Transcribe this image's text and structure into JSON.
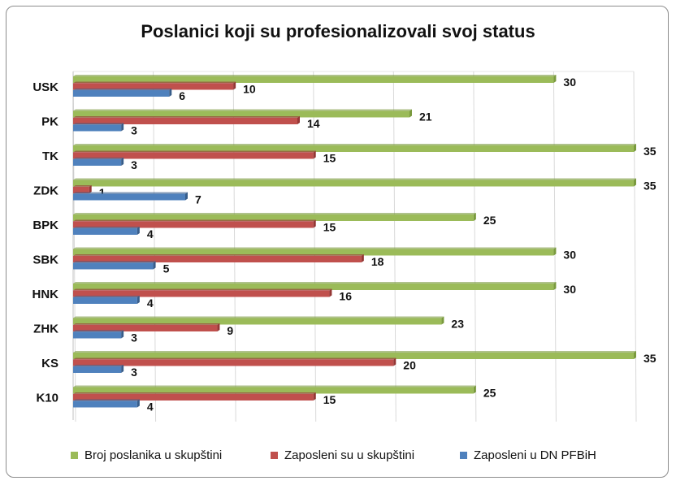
{
  "chart_data": {
    "type": "bar",
    "orientation": "horizontal",
    "title": "Poslanici koji su profesionalizovali svoj status",
    "categories": [
      "USK",
      "PK",
      "TK",
      "ZDK",
      "BPK",
      "SBK",
      "HNK",
      "ZHK",
      "KS",
      "K10"
    ],
    "series": [
      {
        "name": "Broj poslanika u skupštini",
        "color": "#9bbb59",
        "values": [
          30,
          21,
          35,
          35,
          25,
          30,
          30,
          23,
          35,
          25
        ]
      },
      {
        "name": "Zaposleni su u skupštini",
        "color": "#c0504d",
        "values": [
          10,
          14,
          15,
          1,
          15,
          18,
          16,
          9,
          20,
          15
        ]
      },
      {
        "name": "Zaposleni u DN PFBiH",
        "color": "#4f81bd",
        "values": [
          6,
          3,
          3,
          7,
          4,
          5,
          4,
          3,
          3,
          4
        ]
      }
    ],
    "xlim": [
      0,
      35
    ],
    "grid": true,
    "legend": "bottom"
  }
}
